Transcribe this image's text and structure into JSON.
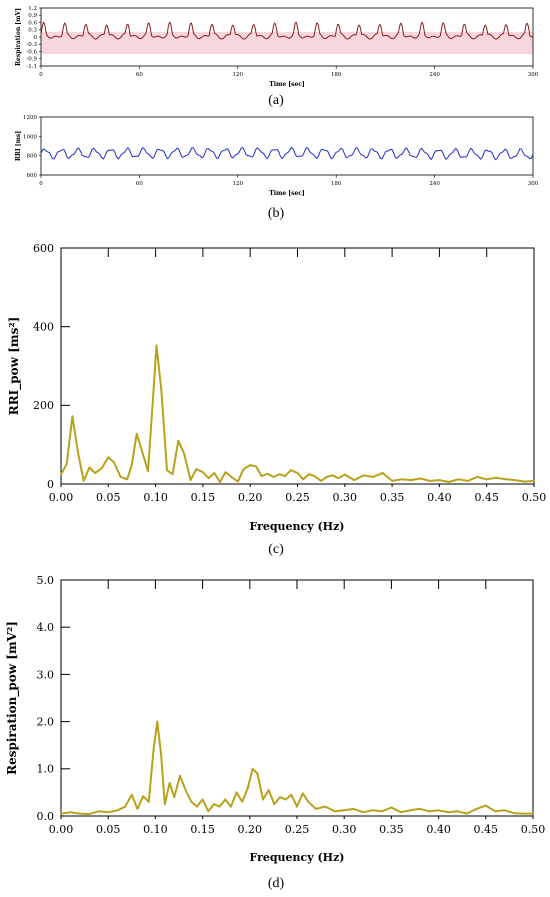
{
  "charts": {
    "a": {
      "type": "line",
      "xlabel": "Time [sec]",
      "ylabel": "Respiration [mV]",
      "caption": "(a)",
      "xlim": [
        0,
        300
      ],
      "ylim": [
        -1.1,
        1.3
      ],
      "xticks": [
        "0",
        "60",
        "120",
        "180",
        "240",
        "300"
      ],
      "yticks": [
        "1.2",
        "0.9",
        "0.6",
        "0.3",
        "0",
        "-0.3",
        "-0.6",
        "-0.9",
        "-1.1"
      ],
      "colors": {
        "line": "#8b1a1a",
        "band": "#f7d6dc"
      },
      "model": {
        "freq": 0.078,
        "amp": 0.28,
        "bias": 0.2,
        "duration": 300
      }
    },
    "b": {
      "type": "line",
      "xlabel": "Time [sec]",
      "ylabel": "RRI [ms]",
      "caption": "(b)",
      "xlim": [
        0,
        300
      ],
      "ylim": [
        600,
        1200
      ],
      "xticks": [
        "0",
        "60",
        "120",
        "180",
        "240",
        "300"
      ],
      "yticks": [
        "1200",
        "1000",
        "800",
        "600"
      ],
      "colors": {
        "line": "#1f2fd0"
      },
      "model": {
        "freq": 0.1,
        "amp": 45,
        "mean": 820
      }
    }
  },
  "chart_data": [
    {
      "type": "line",
      "title": "",
      "xlabel": "Frequency (Hz)",
      "ylabel": "RRI_pow [ms²]",
      "caption": "(c)",
      "xlim": [
        0,
        0.5
      ],
      "ylim": [
        0,
        600
      ],
      "xticks": [
        "0.00",
        "0.05",
        "0.10",
        "0.15",
        "0.20",
        "0.25",
        "0.30",
        "0.35",
        "0.40",
        "0.45",
        "0.50"
      ],
      "yticks": [
        "600",
        "400",
        "200",
        "0"
      ],
      "grid": false,
      "color": "#b8a21c",
      "x": [
        0.0,
        0.006,
        0.012,
        0.018,
        0.024,
        0.03,
        0.036,
        0.043,
        0.05,
        0.056,
        0.063,
        0.07,
        0.075,
        0.08,
        0.086,
        0.092,
        0.097,
        0.101,
        0.106,
        0.112,
        0.118,
        0.124,
        0.13,
        0.137,
        0.143,
        0.15,
        0.156,
        0.162,
        0.168,
        0.174,
        0.18,
        0.187,
        0.193,
        0.2,
        0.206,
        0.212,
        0.218,
        0.225,
        0.231,
        0.237,
        0.243,
        0.25,
        0.256,
        0.262,
        0.268,
        0.275,
        0.281,
        0.287,
        0.293,
        0.3,
        0.31,
        0.32,
        0.33,
        0.34,
        0.35,
        0.36,
        0.37,
        0.38,
        0.39,
        0.4,
        0.41,
        0.42,
        0.43,
        0.44,
        0.45,
        0.46,
        0.47,
        0.48,
        0.49,
        0.5
      ],
      "y": [
        25,
        50,
        172,
        80,
        8,
        42,
        28,
        40,
        68,
        55,
        18,
        12,
        50,
        128,
        80,
        33,
        210,
        352,
        240,
        35,
        25,
        110,
        78,
        10,
        38,
        30,
        15,
        28,
        5,
        30,
        18,
        6,
        38,
        48,
        45,
        20,
        26,
        18,
        25,
        20,
        35,
        28,
        12,
        25,
        20,
        8,
        18,
        22,
        15,
        24,
        10,
        22,
        18,
        28,
        8,
        12,
        10,
        14,
        8,
        10,
        5,
        12,
        8,
        18,
        12,
        16,
        12,
        10,
        6,
        8
      ]
    },
    {
      "type": "line",
      "title": "",
      "xlabel": "Frequency (Hz)",
      "ylabel": "Respiration_pow [mV²]",
      "caption": "(d)",
      "xlim": [
        0,
        0.5
      ],
      "ylim": [
        0,
        5
      ],
      "xticks": [
        "0.00",
        "0.05",
        "0.10",
        "0.15",
        "0.20",
        "0.25",
        "0.30",
        "0.35",
        "0.40",
        "0.45",
        "0.50"
      ],
      "yticks": [
        "5.0",
        "4.0",
        "3.0",
        "2.0",
        "1.0",
        "0.0"
      ],
      "grid": false,
      "color": "#b8a21c",
      "x": [
        0.0,
        0.01,
        0.02,
        0.03,
        0.04,
        0.05,
        0.06,
        0.068,
        0.075,
        0.081,
        0.087,
        0.093,
        0.098,
        0.102,
        0.106,
        0.11,
        0.115,
        0.12,
        0.126,
        0.132,
        0.138,
        0.144,
        0.15,
        0.156,
        0.162,
        0.168,
        0.174,
        0.18,
        0.186,
        0.192,
        0.198,
        0.203,
        0.208,
        0.214,
        0.22,
        0.226,
        0.232,
        0.238,
        0.244,
        0.25,
        0.256,
        0.262,
        0.27,
        0.28,
        0.29,
        0.3,
        0.31,
        0.32,
        0.33,
        0.34,
        0.35,
        0.36,
        0.37,
        0.38,
        0.39,
        0.4,
        0.41,
        0.42,
        0.43,
        0.44,
        0.45,
        0.46,
        0.47,
        0.48,
        0.49,
        0.5
      ],
      "y": [
        0.05,
        0.08,
        0.05,
        0.04,
        0.1,
        0.08,
        0.12,
        0.2,
        0.45,
        0.15,
        0.42,
        0.3,
        1.4,
        2.0,
        1.3,
        0.25,
        0.7,
        0.4,
        0.85,
        0.55,
        0.3,
        0.2,
        0.35,
        0.1,
        0.25,
        0.2,
        0.35,
        0.2,
        0.5,
        0.3,
        0.6,
        1.0,
        0.9,
        0.35,
        0.55,
        0.25,
        0.4,
        0.35,
        0.45,
        0.2,
        0.48,
        0.3,
        0.15,
        0.2,
        0.1,
        0.12,
        0.15,
        0.08,
        0.12,
        0.1,
        0.18,
        0.08,
        0.12,
        0.15,
        0.1,
        0.12,
        0.08,
        0.1,
        0.05,
        0.15,
        0.22,
        0.1,
        0.12,
        0.06,
        0.05,
        0.05
      ]
    }
  ]
}
